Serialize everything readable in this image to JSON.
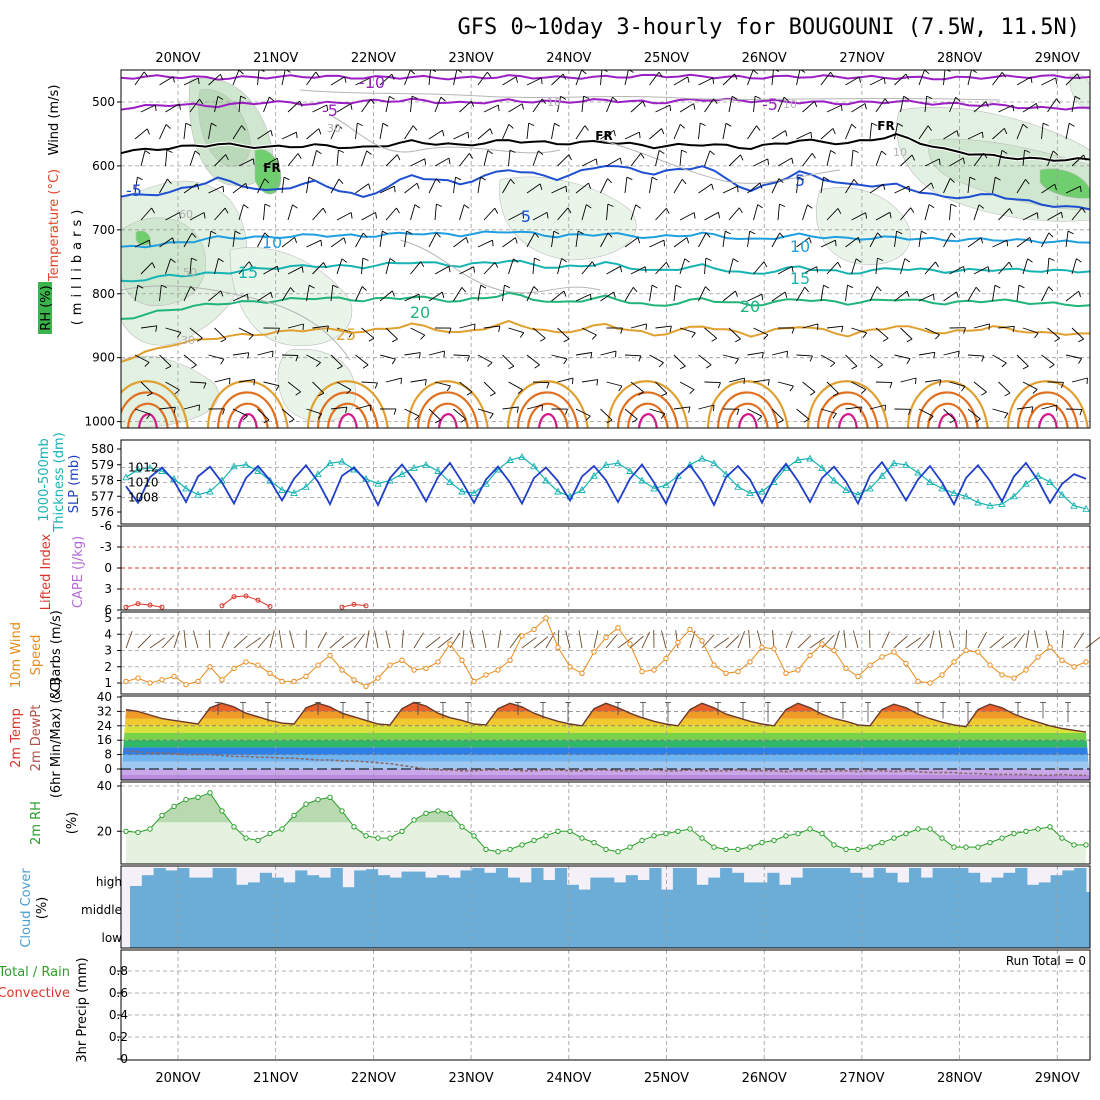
{
  "title": "GFS 0~10day 3-hourly for BOUGOUNI (7.5W, 11.5N)",
  "chart_data": {
    "type": "line",
    "x_dates": [
      "20NOV",
      "21NOV",
      "22NOV",
      "23NOV",
      "24NOV",
      "25NOV",
      "26NOV",
      "27NOV",
      "28NOV",
      "29NOV"
    ],
    "panels": {
      "upper": {
        "ylabels": [
          "Wind (m/s)",
          "Temperature (°C)",
          "RH (%)",
          "(millibars)"
        ],
        "yticks": [
          "500",
          "600",
          "700",
          "800",
          "900",
          "1000"
        ],
        "yrange": [
          450,
          1010
        ],
        "temp_isotherms": [
          {
            "label": "-10",
            "color": "#9b1fc4",
            "levels": [
              462,
              460,
              463,
              461,
              460,
              462,
              461,
              463,
              460,
              462,
              461,
              459,
              460,
              462,
              460,
              461,
              462,
              463,
              461,
              460,
              461
            ]
          },
          {
            "label": "-5",
            "color": "#9b1fc4",
            "levels": [
              510,
              504,
              506,
              500,
              503,
              499,
              497,
              502,
              498,
              500,
              497,
              501,
              496,
              498,
              500,
              502,
              499,
              503,
              505,
              510,
              509
            ]
          },
          {
            "label": "FR",
            "color": "#000000",
            "levels": [
              578,
              572,
              566,
              571,
              568,
              572,
              562,
              568,
              560,
              565,
              562,
              570,
              566,
              572,
              560,
              565,
              552,
              575,
              585,
              590,
              590
            ]
          },
          {
            "label": "5",
            "color": "#1f4fd1",
            "levels": [
              648,
              642,
              620,
              640,
              625,
              650,
              615,
              628,
              605,
              620,
              598,
              612,
              600,
              640,
              610,
              630,
              630,
              650,
              645,
              660,
              668
            ]
          },
          {
            "label": "10",
            "color": "#1f9fe0",
            "levels": [
              728,
              722,
              712,
              712,
              708,
              710,
              705,
              708,
              702,
              710,
              706,
              712,
              706,
              716,
              708,
              714,
              712,
              716,
              715,
              718,
              720
            ]
          },
          {
            "label": "15",
            "color": "#17b3b3",
            "levels": [
              782,
              772,
              768,
              760,
              756,
              758,
              750,
              756,
              748,
              760,
              752,
              765,
              756,
              770,
              758,
              768,
              760,
              765,
              762,
              764,
              765
            ]
          },
          {
            "label": "20",
            "color": "#21b47a",
            "levels": [
              840,
              825,
              815,
              812,
              806,
              810,
              805,
              812,
              800,
              815,
              805,
              820,
              808,
              818,
              808,
              815,
              808,
              815,
              810,
              815,
              818
            ]
          },
          {
            "label": "25",
            "color": "#e0a030",
            "levels": [
              905,
              880,
              868,
              862,
              855,
              860,
              848,
              862,
              845,
              862,
              848,
              865,
              850,
              865,
              850,
              865,
              850,
              862,
              852,
              862,
              862
            ]
          }
        ],
        "label_words": [
          "-10",
          "-5",
          "-5",
          "FR",
          "FR",
          "FR",
          "-5",
          "5",
          "5",
          "10",
          "10",
          "15",
          "15",
          "20",
          "20",
          "25",
          "10",
          "30",
          "50",
          "30",
          "60",
          "10",
          "10"
        ]
      },
      "thickness_slp": {
        "ylabels": [
          "1000-500mb",
          "Thickness (dm)",
          "SLP (mb)"
        ],
        "yticks_left": [
          "576",
          "577",
          "578",
          "579",
          "580"
        ],
        "yticks_right": [
          "1008",
          "1010",
          "1012"
        ],
        "slp_mb": [
          1009.5,
          1007.3,
          1010.7,
          1012.0,
          1010.2,
          1007.4,
          1010.8,
          1012.1,
          1010.0,
          1007.2,
          1010.6,
          1012.2,
          1010.3,
          1007.6,
          1010.5,
          1012.3,
          1010.1,
          1007.1,
          1010.9,
          1012.0,
          1010.2,
          1007.0,
          1010.6,
          1012.4,
          1010.3,
          1007.5,
          1010.7,
          1012.6,
          1010.1,
          1007.3,
          1010.4,
          1012.1,
          1010.0,
          1007.2,
          1010.6,
          1012.0,
          1010.2,
          1007.6,
          1010.8,
          1012.2,
          1010.3,
          1007.4,
          1010.5,
          1012.4,
          1010.0,
          1007.2,
          1010.9,
          1012.3,
          1010.1,
          1007.0,
          1010.7,
          1012.2,
          1010.4,
          1007.3,
          1010.5,
          1012.5,
          1010.2,
          1007.4,
          1010.6,
          1012.1,
          1010.1,
          1007.2,
          1010.9,
          1012.7,
          1010.3,
          1007.6,
          1010.4,
          1012.2,
          1010.0,
          1007.1,
          1010.6,
          1012.3,
          1010.2,
          1007.5,
          1010.8,
          1012.6,
          1010.3,
          1007.3,
          1009.8,
          1011.1,
          1010.5
        ],
        "thickness_dm": [
          578.2,
          578.7,
          578.8,
          578.6,
          578.1,
          577.5,
          577.1,
          577.3,
          578.0,
          578.9,
          579.0,
          578.6,
          578.0,
          577.4,
          577.2,
          577.6,
          578.4,
          579.1,
          579.2,
          578.7,
          578.1,
          577.8,
          578.0,
          578.4,
          578.8,
          579.0,
          578.6,
          577.9,
          577.3,
          577.2,
          577.8,
          578.7,
          579.3,
          579.5,
          578.9,
          578.0,
          577.3,
          577.0,
          577.4,
          578.3,
          579.0,
          579.1,
          578.6,
          578.0,
          577.5,
          577.7,
          578.3,
          579.0,
          579.4,
          579.1,
          578.4,
          577.6,
          577.2,
          577.3,
          577.9,
          578.8,
          579.3,
          579.4,
          578.8,
          578.0,
          577.4,
          577.1,
          577.5,
          578.3,
          579.1,
          579.0,
          578.5,
          577.9,
          577.5,
          577.2,
          577.0,
          576.6,
          576.4,
          576.5,
          577.0,
          577.8,
          578.3,
          577.9,
          577.1,
          576.4,
          576.2
        ]
      },
      "cape_li": {
        "ylabels": [
          "Lifted Index",
          "CAPE (J/kg)"
        ],
        "yticks": [
          "-6",
          "-3",
          "0",
          "3",
          "6"
        ],
        "lifted_index_segments": [
          {
            "start": 0,
            "values": [
              5.6,
              5.1,
              5.3,
              5.6
            ]
          },
          {
            "start": 8,
            "values": [
              5.4,
              4.1,
              4.0,
              4.6,
              5.5
            ]
          },
          {
            "start": 18,
            "values": [
              5.6,
              5.2,
              5.4
            ]
          }
        ]
      },
      "wind10m": {
        "ylabels": [
          "10m Wind",
          "Speed",
          "& Barbs (m/s)"
        ],
        "yticks": [
          "1",
          "2",
          "3",
          "4",
          "5"
        ],
        "speed_ms": [
          1.1,
          1.3,
          1.0,
          1.2,
          1.4,
          0.9,
          1.1,
          2.0,
          1.2,
          1.9,
          2.3,
          2.1,
          1.6,
          1.1,
          1.1,
          1.4,
          2.1,
          2.7,
          1.8,
          1.2,
          0.8,
          1.3,
          2.1,
          2.4,
          1.8,
          1.9,
          2.3,
          3.4,
          2.4,
          1.1,
          1.5,
          1.8,
          2.4,
          3.9,
          4.3,
          5.0,
          3.2,
          2.0,
          1.6,
          2.9,
          3.8,
          4.4,
          3.4,
          1.7,
          1.8,
          2.5,
          3.5,
          4.3,
          3.6,
          2.1,
          1.6,
          1.7,
          2.3,
          3.2,
          3.1,
          1.6,
          1.8,
          2.7,
          3.4,
          3.0,
          1.9,
          1.4,
          2.1,
          2.6,
          2.9,
          2.2,
          1.1,
          1.0,
          1.5,
          2.3,
          3.0,
          2.9,
          2.1,
          1.5,
          1.3,
          1.8,
          2.6,
          3.2,
          2.4,
          2.0,
          2.3
        ]
      },
      "temp2m": {
        "ylabels": [
          "2m Temp",
          "2m DewPt",
          "(6hr Min/Max) (°C)"
        ],
        "yticks": [
          "0",
          "8",
          "16",
          "24",
          "32",
          "40"
        ],
        "temp_c": [
          33.0,
          32.0,
          30.0,
          28.0,
          27.0,
          26.0,
          25.0,
          34.0,
          36.5,
          34.5,
          31.0,
          29.0,
          27.0,
          25.5,
          25.0,
          34.0,
          36.5,
          34.5,
          31.0,
          29.0,
          27.0,
          25.0,
          24.5,
          33.5,
          37.0,
          35.0,
          31.0,
          28.5,
          27.0,
          25.0,
          24.5,
          33.5,
          36.5,
          34.5,
          31.0,
          28.5,
          26.5,
          25.0,
          24.0,
          33.5,
          36.5,
          34.0,
          31.0,
          28.5,
          26.5,
          25.0,
          24.0,
          33.0,
          36.5,
          34.0,
          30.5,
          28.5,
          26.5,
          25.0,
          24.0,
          33.0,
          36.5,
          34.0,
          30.5,
          28.0,
          26.5,
          24.5,
          24.0,
          33.0,
          36.0,
          34.0,
          30.5,
          28.0,
          26.0,
          24.5,
          23.5,
          33.0,
          36.0,
          34.0,
          30.5,
          28.0,
          26.0,
          24.0,
          22.5,
          21.5,
          20.5
        ],
        "dewpt_c": [
          10,
          9.5,
          9,
          9,
          8.5,
          8,
          8,
          8,
          7.5,
          7,
          7,
          6.5,
          6.5,
          6,
          6,
          5.5,
          5,
          5,
          4.5,
          4.5,
          4,
          3.5,
          3,
          2,
          1,
          0,
          -0.5,
          -0.5,
          -1,
          -1,
          -0.5,
          -0.5,
          -0.5,
          -1,
          -1,
          -0.5,
          -0.5,
          -1,
          -1,
          -0.5,
          -0.5,
          -1,
          -1,
          -0.5,
          -0.5,
          -1,
          -1,
          -0.5,
          -1,
          -1,
          -1,
          -0.5,
          -1,
          -1,
          -1,
          -1.5,
          -1,
          -1,
          -1.5,
          -1,
          -1,
          -1.5,
          -1,
          -1,
          -1.5,
          -1,
          -1.5,
          -2,
          -2,
          -2,
          -2.5,
          -2.5,
          -3,
          -3,
          -3,
          -3,
          -3.5,
          -3.5,
          -3,
          -3.5,
          -3.5
        ]
      },
      "rh2m": {
        "ylabels": [
          "2m RH",
          "(%)"
        ],
        "yticks": [
          "20",
          "40"
        ],
        "rh_pct": [
          20,
          19.5,
          21,
          27,
          31,
          34,
          35,
          37,
          29,
          22,
          17,
          16,
          19,
          21,
          27,
          32,
          34,
          35,
          29,
          22,
          18,
          17,
          17,
          20,
          25,
          28,
          29,
          28,
          22,
          18,
          12,
          11,
          12,
          14,
          16,
          18,
          20,
          20,
          17,
          15,
          12,
          11,
          13,
          16,
          18,
          19,
          20,
          21,
          17,
          13,
          12,
          12,
          13,
          15,
          16,
          18,
          19,
          21,
          19,
          14,
          12,
          12,
          13,
          15,
          17,
          19,
          21,
          21,
          17,
          13,
          13,
          13,
          15,
          17,
          19,
          20,
          21,
          22,
          17,
          14,
          14
        ]
      },
      "cloud": {
        "ylabels": [
          "Cloud Cover",
          "(%)"
        ],
        "levels": [
          "high",
          "middle",
          "low"
        ],
        "high_pct": [
          25,
          70,
          100,
          90,
          100,
          60,
          60,
          100,
          100,
          30,
          40,
          80,
          60,
          40,
          90,
          70,
          60,
          100,
          20,
          90,
          95,
          70,
          60,
          85,
          85,
          60,
          70,
          60,
          90,
          100,
          80,
          100,
          60,
          40,
          100,
          50,
          100,
          30,
          10,
          60,
          60,
          40,
          70,
          50,
          100,
          10,
          100,
          100,
          30,
          60,
          100,
          80,
          40,
          40,
          80,
          30,
          60,
          100,
          100,
          100,
          100,
          80,
          60,
          100,
          80,
          40,
          100,
          60,
          100,
          100,
          100,
          80,
          40,
          60,
          80,
          100,
          30,
          40,
          70,
          90,
          100
        ]
      },
      "precip": {
        "ylabels": [
          "Total / Rain",
          "Convective",
          "3hr Precip (mm)"
        ],
        "yticks": [
          "0",
          "0.2",
          "0.4",
          "0.6",
          "0.8"
        ],
        "run_total_label": "Run Total = 0",
        "precip_mm": []
      }
    }
  }
}
